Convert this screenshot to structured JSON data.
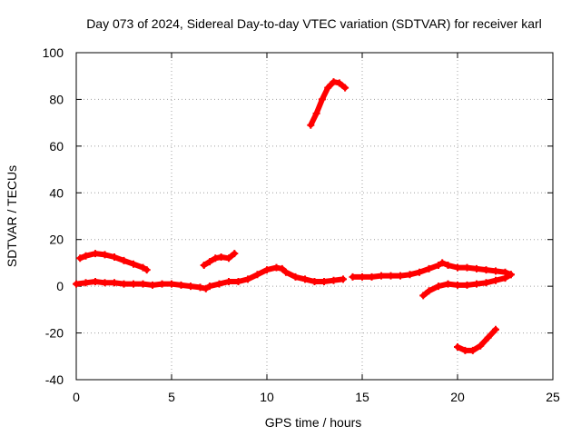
{
  "chart_data": {
    "type": "scatter",
    "title": "Day 073 of 2024, Sidereal Day-to-day VTEC variation (SDTVAR) for receiver karl",
    "xlabel": "GPS time / hours",
    "ylabel": "SDTVAR / TECUs",
    "xlim": [
      0,
      25
    ],
    "ylim": [
      -40,
      100
    ],
    "xticks": [
      0,
      5,
      10,
      15,
      20,
      25
    ],
    "yticks": [
      -40,
      -20,
      0,
      20,
      40,
      60,
      80,
      100
    ],
    "grid": true,
    "marker": "plus",
    "color": "#ff0000",
    "series": [
      {
        "name": "baseline",
        "x": [
          0.0,
          0.5,
          1.0,
          1.5,
          2.0,
          2.5,
          3.0,
          3.5,
          4.0,
          4.5,
          5.0,
          5.5,
          6.0,
          6.5,
          6.8,
          7.0,
          7.5,
          8.0,
          8.5,
          9.0,
          9.5,
          10.0,
          10.5,
          10.8,
          11.0,
          11.5,
          12.0,
          12.5,
          13.0,
          13.5,
          14.0
        ],
        "y": [
          1,
          1.5,
          2,
          1.5,
          1.5,
          1,
          1,
          1,
          0.5,
          1,
          1,
          0.5,
          0,
          -0.5,
          -1,
          0,
          1,
          2,
          2,
          3,
          5,
          7,
          8,
          7.5,
          6,
          4,
          3,
          2,
          2,
          2.5,
          3
        ]
      },
      {
        "name": "segment-2",
        "x": [
          14.5,
          15.0,
          15.5,
          16.0,
          16.5,
          17.0,
          17.5,
          18.0,
          18.5,
          19.0,
          19.2,
          19.5,
          20.0,
          20.5,
          21.0,
          21.5,
          22.0,
          22.5,
          22.8
        ],
        "y": [
          4,
          4,
          4,
          4.5,
          4.5,
          4.5,
          5,
          6,
          7.5,
          9,
          10,
          9,
          8,
          8,
          7.5,
          7,
          6.5,
          6,
          5
        ]
      },
      {
        "name": "segment-3",
        "x": [
          18.2,
          18.5,
          19.0,
          19.5,
          20.0,
          20.5,
          21.0,
          21.5,
          22.0,
          22.5,
          22.8
        ],
        "y": [
          -4,
          -2,
          0,
          1,
          0.5,
          0.5,
          1,
          1.5,
          2.5,
          3.5,
          5
        ]
      },
      {
        "name": "segment-4",
        "x": [
          0.2,
          0.5,
          1.0,
          1.5,
          2.0,
          2.5,
          3.0,
          3.5,
          3.7
        ],
        "y": [
          12,
          13,
          14,
          13.5,
          12.5,
          11,
          9.5,
          8,
          7
        ]
      },
      {
        "name": "segment-5",
        "x": [
          6.7,
          7.0,
          7.3,
          7.6,
          8.0,
          8.3
        ],
        "y": [
          9,
          10.5,
          12,
          12.5,
          12,
          14
        ]
      },
      {
        "name": "segment-6",
        "x": [
          12.3,
          12.6,
          12.9,
          13.2,
          13.5,
          13.8,
          14.1
        ],
        "y": [
          69,
          74,
          80,
          85,
          87.5,
          87,
          85
        ]
      },
      {
        "name": "segment-7",
        "x": [
          20.0,
          20.4,
          20.8,
          21.2,
          21.6,
          22.0
        ],
        "y": [
          -26,
          -27.5,
          -27.5,
          -25.5,
          -22,
          -18.5
        ]
      }
    ]
  }
}
